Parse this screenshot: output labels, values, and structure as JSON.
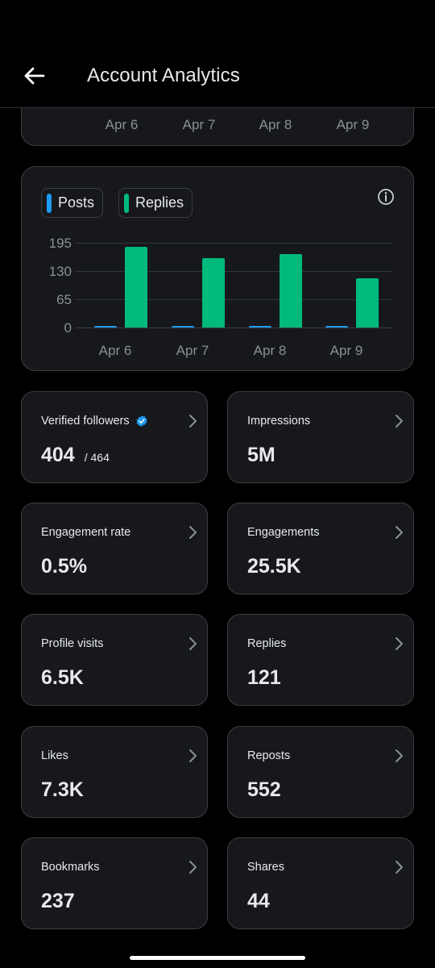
{
  "header": {
    "title": "Account Analytics"
  },
  "top_card": {
    "x_labels": [
      "Apr 6",
      "Apr 7",
      "Apr 8",
      "Apr 9"
    ]
  },
  "chart_data": {
    "type": "bar",
    "categories": [
      "Apr 6",
      "Apr 7",
      "Apr 8",
      "Apr 9"
    ],
    "series": [
      {
        "name": "Posts",
        "color": "#1d9bf0",
        "values": [
          2,
          1,
          3,
          2
        ]
      },
      {
        "name": "Replies",
        "color": "#00ba7c",
        "values": [
          186,
          160,
          169,
          114
        ]
      }
    ],
    "y_ticks": [
      "195",
      "130",
      "65",
      "0"
    ],
    "ylim": [
      0,
      195
    ],
    "legend": "top-left",
    "grid": true
  },
  "metrics": [
    {
      "label": "Verified followers",
      "value": "404",
      "sub": "/ 464",
      "verified": true
    },
    {
      "label": "Impressions",
      "value": "5M"
    },
    {
      "label": "Engagement rate",
      "value": "0.5%"
    },
    {
      "label": "Engagements",
      "value": "25.5K"
    },
    {
      "label": "Profile visits",
      "value": "6.5K"
    },
    {
      "label": "Replies",
      "value": "121"
    },
    {
      "label": "Likes",
      "value": "7.3K"
    },
    {
      "label": "Reposts",
      "value": "552"
    },
    {
      "label": "Bookmarks",
      "value": "237"
    },
    {
      "label": "Shares",
      "value": "44"
    }
  ],
  "icons": {
    "back": "arrow-left-icon",
    "info": "info-icon",
    "chevron": "chevron-right-icon",
    "verified": "verified-badge-icon"
  }
}
